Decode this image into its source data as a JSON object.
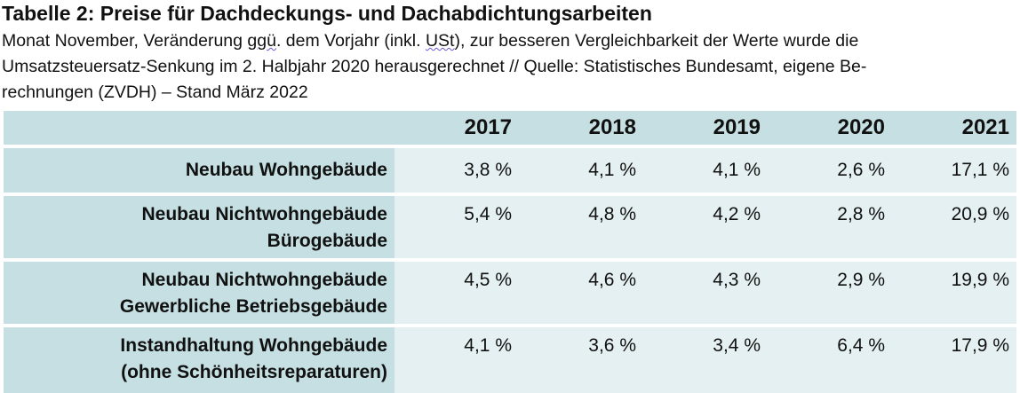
{
  "title": "Tabelle 2: Preise für Dachdeckungs- und Dachabdichtungsarbeiten",
  "subtitle": {
    "line1_a": "Monat November, Veränderung ",
    "line1_abbr1": "ggü",
    "line1_b": ". dem Vorjahr (inkl. ",
    "line1_abbr2": "USt",
    "line1_c": "), zur besseren Vergleichbarkeit der Werte wurde die",
    "line2": "Umsatzsteuersatz-Senkung im 2. Halbjahr 2020 herausgerechnet // Quelle: Statistisches Bundesamt, eigene Be-",
    "line3": "rechnungen (ZVDH) – Stand März 2022"
  },
  "table": {
    "years": [
      "2017",
      "2018",
      "2019",
      "2020",
      "2021"
    ],
    "rows": [
      {
        "label_line1": "Neubau Wohngebäude",
        "label_line2": "",
        "values": [
          "3,8 %",
          "4,1 %",
          "4,1 %",
          "2,6 %",
          "17,1 %"
        ]
      },
      {
        "label_line1": "Neubau Nichtwohngebäude",
        "label_line2": "Bürogebäude",
        "values": [
          "5,4 %",
          "4,8 %",
          "4,2 %",
          "2,8 %",
          "20,9 %"
        ]
      },
      {
        "label_line1": "Neubau Nichtwohngebäude",
        "label_line2": "Gewerbliche Betriebsgebäude",
        "values": [
          "4,5 %",
          "4,6 %",
          "4,3 %",
          "2,9 %",
          "19,9 %"
        ]
      },
      {
        "label_line1": "Instandhaltung Wohngebäude",
        "label_line2": "(ohne Schönheitsreparaturen)",
        "values": [
          "4,1 %",
          "3,6 %",
          "3,4 %",
          "6,4 %",
          "17,9 %"
        ]
      }
    ]
  },
  "colors": {
    "header_fill": "#c5dfe2",
    "cell_fill": "#e4f0f1"
  }
}
